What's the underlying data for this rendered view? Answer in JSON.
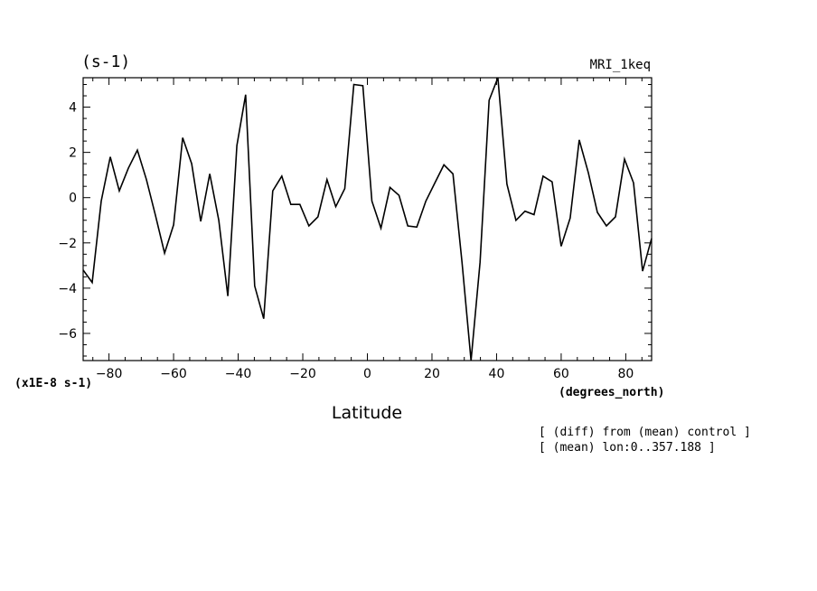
{
  "chart_data": {
    "type": "line",
    "units_label": "(s-1)",
    "model_label": "MRI_1keq",
    "xlabel": "Latitude",
    "xunits": "(degrees_north)",
    "yscale_label": "(x1E-8 s-1)",
    "annotations": [
      "[ (diff) from (mean) control ]",
      "[ (mean) lon:0..357.188 ]"
    ],
    "xlim": [
      -88.0,
      88.0
    ],
    "ylim": [
      -7.2,
      5.3
    ],
    "x_ticks": [
      -80,
      -60,
      -40,
      -20,
      0,
      20,
      40,
      60,
      80
    ],
    "x_tick_labels": [
      "−80",
      "−60",
      "−40",
      "−20",
      "0",
      "20",
      "40",
      "60",
      "80"
    ],
    "y_ticks": [
      -6,
      -4,
      -2,
      0,
      2,
      4
    ],
    "y_tick_labels": [
      "−6",
      "−4",
      "−2",
      "0",
      "2",
      "4"
    ],
    "grid": false,
    "series": [
      {
        "x": [
          -88.0,
          -85.2,
          -82.4,
          -79.6,
          -76.8,
          -74.0,
          -71.2,
          -68.4,
          -65.6,
          -62.8,
          -60.0,
          -57.2,
          -54.4,
          -51.6,
          -48.8,
          -46.0,
          -43.2,
          -40.4,
          -37.7,
          -34.9,
          -32.1,
          -29.3,
          -26.5,
          -23.7,
          -20.9,
          -18.1,
          -15.3,
          -12.5,
          -9.8,
          -7.0,
          -4.2,
          -1.4,
          1.4,
          4.2,
          7.0,
          9.8,
          12.5,
          15.3,
          18.1,
          20.9,
          23.7,
          26.5,
          29.3,
          32.1,
          34.9,
          37.7,
          40.4,
          43.2,
          46.0,
          48.8,
          51.6,
          54.4,
          57.2,
          60.0,
          62.8,
          65.6,
          68.4,
          71.2,
          74.0,
          76.8,
          79.6,
          82.4,
          85.2,
          88.0
        ],
        "values": [
          -3.2,
          -3.75,
          -0.15,
          1.8,
          0.3,
          1.3,
          2.1,
          0.8,
          -0.8,
          -2.45,
          -1.2,
          2.65,
          1.5,
          -1.05,
          1.05,
          -1.0,
          -4.35,
          2.3,
          4.55,
          -3.9,
          -5.35,
          0.3,
          0.95,
          -0.3,
          -0.3,
          -1.25,
          -0.85,
          0.8,
          -0.4,
          0.4,
          5.0,
          4.95,
          -0.15,
          -1.35,
          0.45,
          0.1,
          -1.25,
          -1.3,
          -0.15,
          0.65,
          1.45,
          1.05,
          -2.85,
          -7.2,
          -2.85,
          4.3,
          5.3,
          0.6,
          -1.0,
          -0.6,
          -0.75,
          0.95,
          0.7,
          -2.15,
          -0.9,
          2.55,
          1.1,
          -0.65,
          -1.25,
          -0.85,
          1.7,
          0.65,
          -3.25,
          -1.8
        ]
      }
    ]
  }
}
